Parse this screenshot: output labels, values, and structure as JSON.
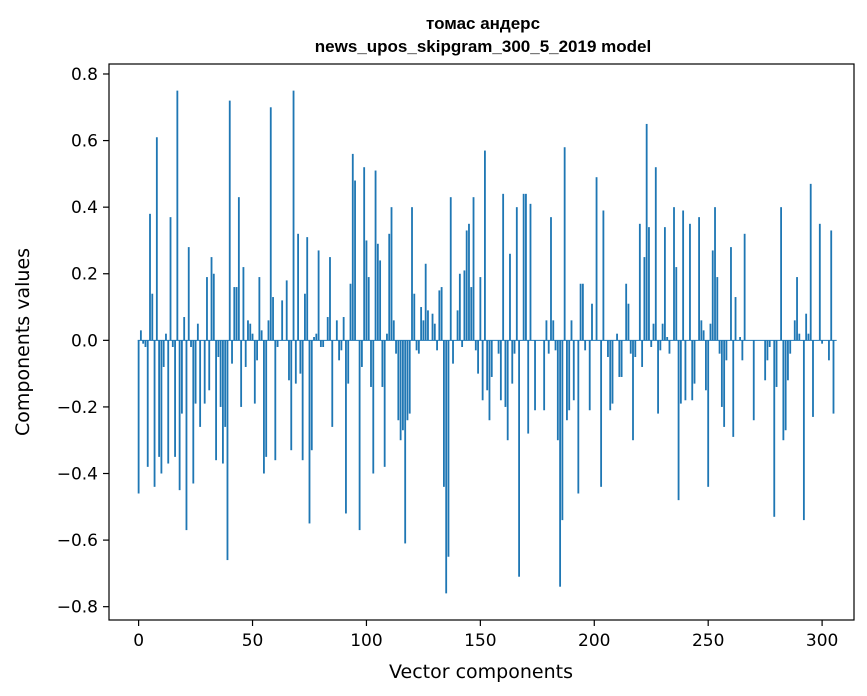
{
  "chart_data": {
    "type": "bar",
    "title_line1": "томас андерс",
    "title_line2": "news_upos_skipgram_300_5_2019 model",
    "xlabel": "Vector components",
    "ylabel": "Components values",
    "xlim": [
      -13,
      314
    ],
    "ylim": [
      -0.84,
      0.83
    ],
    "xticks": [
      0,
      50,
      100,
      150,
      200,
      250,
      300
    ],
    "yticks": [
      -0.8,
      -0.6,
      -0.4,
      -0.2,
      0.0,
      0.2,
      0.4,
      0.6,
      0.8
    ],
    "ytick_labels": [
      "−0.8",
      "−0.6",
      "−0.4",
      "−0.2",
      "0.0",
      "0.2",
      "0.4",
      "0.6",
      "0.8"
    ],
    "bar_color": "#1f77b4",
    "grid": false,
    "legend": "none",
    "values": [
      -0.46,
      0.03,
      -0.01,
      -0.02,
      -0.38,
      0.38,
      0.14,
      -0.44,
      0.61,
      -0.35,
      -0.4,
      -0.08,
      0.02,
      -0.37,
      0.37,
      -0.02,
      -0.35,
      0.75,
      -0.45,
      -0.22,
      0.07,
      -0.57,
      0.28,
      -0.02,
      -0.43,
      -0.19,
      0.05,
      -0.26,
      0.0,
      -0.19,
      0.19,
      -0.15,
      0.25,
      0.2,
      -0.36,
      -0.05,
      -0.2,
      -0.37,
      -0.26,
      -0.66,
      0.72,
      -0.07,
      0.16,
      0.16,
      0.43,
      -0.2,
      0.22,
      -0.08,
      0.06,
      0.05,
      0.02,
      -0.19,
      -0.06,
      0.19,
      0.03,
      -0.4,
      -0.35,
      0.06,
      0.7,
      0.13,
      -0.36,
      -0.02,
      0.0,
      0.12,
      0.0,
      0.18,
      -0.12,
      -0.33,
      0.75,
      -0.13,
      0.32,
      -0.1,
      -0.36,
      0.14,
      0.31,
      -0.55,
      -0.33,
      0.01,
      0.02,
      0.27,
      -0.02,
      -0.02,
      0.0,
      0.07,
      0.25,
      -0.26,
      0.0,
      0.06,
      -0.06,
      -0.03,
      0.07,
      -0.52,
      -0.13,
      0.17,
      0.56,
      0.48,
      0.0,
      -0.57,
      -0.08,
      0.52,
      0.3,
      0.19,
      -0.14,
      -0.4,
      0.51,
      0.29,
      0.24,
      -0.14,
      -0.38,
      0.02,
      0.32,
      0.4,
      0.06,
      -0.04,
      -0.24,
      -0.3,
      -0.27,
      -0.61,
      -0.24,
      -0.22,
      0.4,
      0.14,
      -0.03,
      -0.04,
      0.1,
      0.06,
      0.23,
      0.09,
      0.0,
      0.08,
      0.05,
      -0.03,
      0.15,
      0.16,
      -0.44,
      -0.76,
      -0.65,
      0.43,
      -0.07,
      0.0,
      0.09,
      0.2,
      -0.02,
      0.21,
      0.33,
      0.35,
      0.16,
      0.43,
      -0.03,
      -0.1,
      0.19,
      -0.18,
      0.57,
      -0.15,
      -0.24,
      -0.11,
      0.0,
      0.0,
      -0.04,
      -0.18,
      0.44,
      -0.2,
      -0.3,
      0.26,
      -0.13,
      -0.04,
      0.4,
      -0.71,
      0.0,
      0.44,
      0.44,
      -0.28,
      0.41,
      0.0,
      -0.21,
      0.0,
      0.0,
      0.0,
      -0.21,
      0.06,
      -0.04,
      0.37,
      0.06,
      -0.03,
      -0.3,
      -0.74,
      -0.54,
      0.58,
      -0.24,
      -0.21,
      0.06,
      -0.18,
      0.0,
      -0.46,
      0.17,
      0.17,
      -0.03,
      0.0,
      -0.21,
      0.11,
      0.0,
      0.49,
      0.0,
      -0.44,
      0.39,
      0.0,
      -0.05,
      -0.21,
      -0.19,
      0.0,
      0.02,
      -0.11,
      -0.11,
      0.0,
      0.17,
      0.11,
      -0.04,
      -0.3,
      -0.05,
      0.0,
      0.35,
      -0.08,
      0.25,
      0.65,
      0.34,
      -0.02,
      0.05,
      0.52,
      -0.22,
      -0.03,
      0.05,
      0.34,
      0.01,
      -0.04,
      0.0,
      0.4,
      0.22,
      -0.48,
      -0.19,
      0.39,
      -0.18,
      0.0,
      0.35,
      -0.18,
      -0.13,
      0.0,
      0.37,
      0.06,
      0.03,
      -0.15,
      -0.44,
      0.05,
      0.27,
      0.4,
      0.19,
      -0.04,
      -0.2,
      -0.26,
      -0.06,
      0.0,
      0.28,
      -0.29,
      0.13,
      0.0,
      0.01,
      -0.06,
      0.32,
      0.0,
      0.0,
      0.0,
      -0.24,
      0.0,
      0.0,
      0.0,
      0.0,
      -0.12,
      -0.06,
      -0.02,
      0.0,
      -0.53,
      -0.14,
      0.0,
      0.4,
      -0.3,
      -0.27,
      -0.12,
      -0.04,
      0.0,
      0.06,
      0.19,
      0.02,
      0.0,
      -0.54,
      0.08,
      0.02,
      0.47,
      -0.23,
      0.0,
      0.0,
      0.35,
      -0.01,
      0.0,
      0.0,
      -0.06,
      0.33,
      -0.22,
      0.0
    ]
  }
}
